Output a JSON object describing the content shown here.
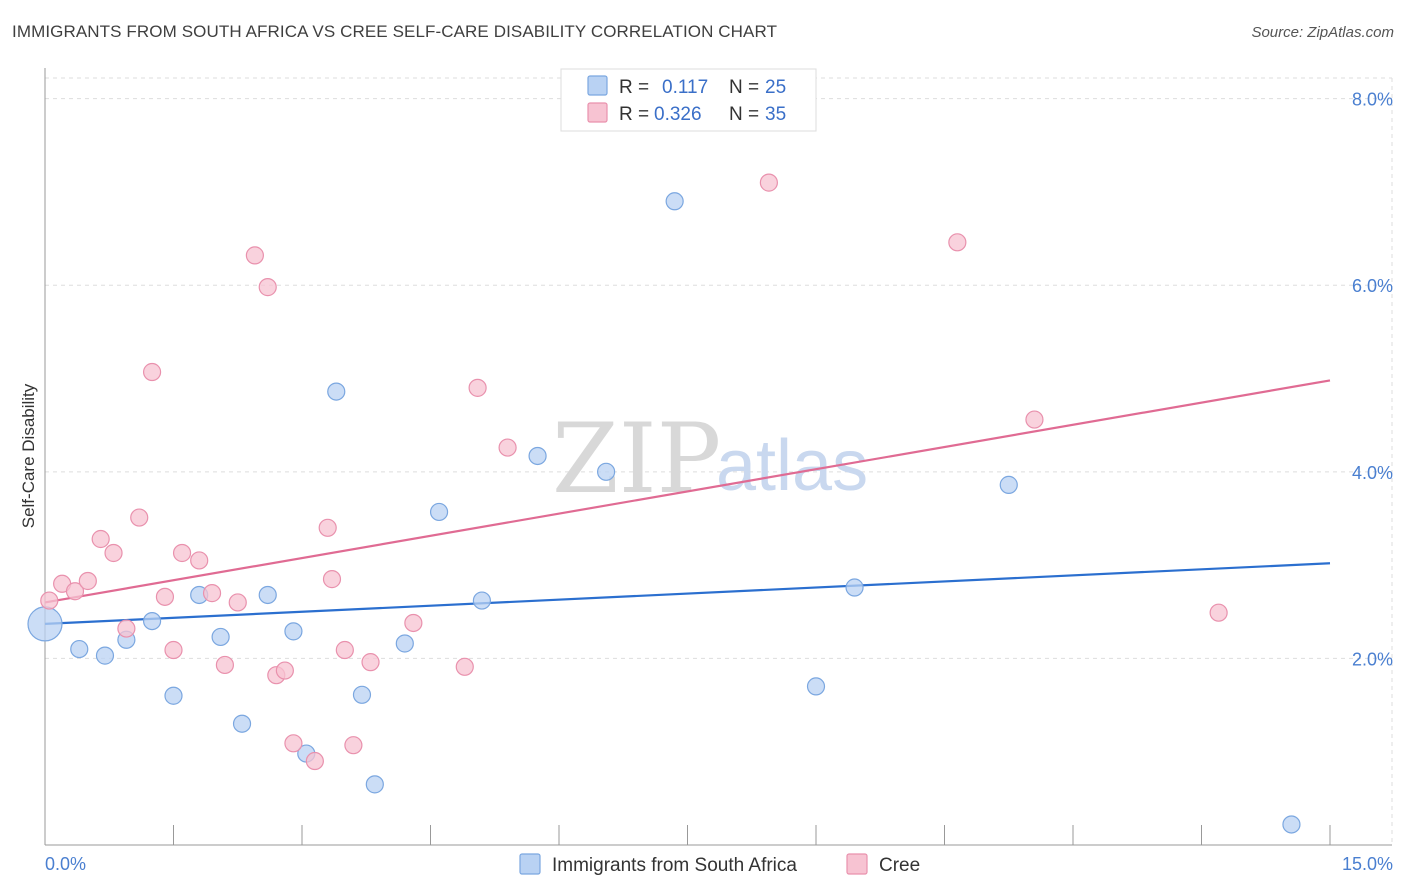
{
  "title": "IMMIGRANTS FROM SOUTH AFRICA VS CREE SELF-CARE DISABILITY CORRELATION CHART",
  "source": "Source: ZipAtlas.com",
  "watermark": {
    "zip": "ZIP",
    "atlas": "atlas"
  },
  "colors": {
    "blue_fill": "#b9d2f3",
    "blue_stroke": "#7ba7e0",
    "blue_line": "#2b6fcf",
    "pink_fill": "#f7c3d2",
    "pink_stroke": "#e991ad",
    "pink_line": "#e06b93",
    "grid": "#dddddd",
    "tick_text": "#4a7fd0"
  },
  "legend": {
    "blue": {
      "r_label": "R =",
      "r_value": "0.117",
      "n_label": "N =",
      "n_value": "25"
    },
    "pink": {
      "r_label": "R =",
      "r_value": "0.326",
      "n_label": "N =",
      "n_value": "35"
    }
  },
  "chart_data": {
    "type": "scatter",
    "xlabel": "",
    "ylabel": "Self-Care Disability",
    "xlim": [
      0,
      15
    ],
    "ylim": [
      0,
      8.2
    ],
    "y_ticks": [
      2,
      4,
      6,
      8
    ],
    "y_tick_labels": [
      "2.0%",
      "4.0%",
      "6.0%",
      "8.0%"
    ],
    "x_tick_labels": [
      "0.0%",
      "15.0%"
    ],
    "x_minor_ticks": [
      0,
      1.5,
      3,
      4.5,
      6,
      7.5,
      9,
      10.5,
      12,
      13.5,
      15
    ],
    "grid": true,
    "legend_position": "top-center",
    "series": [
      {
        "name": "Immigrants from South Africa",
        "color": "blue",
        "trend": {
          "x": [
            0,
            15
          ],
          "y": [
            2.37,
            3.02
          ]
        },
        "points": [
          {
            "x": 0.0,
            "y": 2.37,
            "big": true
          },
          {
            "x": 0.4,
            "y": 2.1
          },
          {
            "x": 0.7,
            "y": 2.03
          },
          {
            "x": 0.95,
            "y": 2.2
          },
          {
            "x": 1.25,
            "y": 2.4
          },
          {
            "x": 1.5,
            "y": 1.6
          },
          {
            "x": 1.8,
            "y": 2.68
          },
          {
            "x": 2.05,
            "y": 2.23
          },
          {
            "x": 2.3,
            "y": 1.3
          },
          {
            "x": 2.6,
            "y": 2.68
          },
          {
            "x": 2.9,
            "y": 2.29
          },
          {
            "x": 3.05,
            "y": 0.98
          },
          {
            "x": 3.4,
            "y": 4.86
          },
          {
            "x": 3.7,
            "y": 1.61
          },
          {
            "x": 3.85,
            "y": 0.65
          },
          {
            "x": 4.2,
            "y": 2.16
          },
          {
            "x": 4.6,
            "y": 3.57
          },
          {
            "x": 5.1,
            "y": 2.62
          },
          {
            "x": 5.75,
            "y": 4.17
          },
          {
            "x": 6.55,
            "y": 4.0
          },
          {
            "x": 7.35,
            "y": 6.9
          },
          {
            "x": 9.0,
            "y": 1.7
          },
          {
            "x": 9.45,
            "y": 2.76
          },
          {
            "x": 11.25,
            "y": 3.86
          },
          {
            "x": 14.55,
            "y": 0.22
          }
        ]
      },
      {
        "name": "Cree",
        "color": "pink",
        "trend": {
          "x": [
            0,
            15
          ],
          "y": [
            2.6,
            4.98
          ]
        },
        "points": [
          {
            "x": 0.05,
            "y": 2.62
          },
          {
            "x": 0.2,
            "y": 2.8
          },
          {
            "x": 0.35,
            "y": 2.72
          },
          {
            "x": 0.5,
            "y": 2.83
          },
          {
            "x": 0.65,
            "y": 3.28
          },
          {
            "x": 0.8,
            "y": 3.13
          },
          {
            "x": 0.95,
            "y": 2.32
          },
          {
            "x": 1.1,
            "y": 3.51
          },
          {
            "x": 1.25,
            "y": 5.07
          },
          {
            "x": 1.4,
            "y": 2.66
          },
          {
            "x": 1.5,
            "y": 2.09
          },
          {
            "x": 1.6,
            "y": 3.13
          },
          {
            "x": 1.8,
            "y": 3.05
          },
          {
            "x": 1.95,
            "y": 2.7
          },
          {
            "x": 2.1,
            "y": 1.93
          },
          {
            "x": 2.25,
            "y": 2.6
          },
          {
            "x": 2.45,
            "y": 6.32
          },
          {
            "x": 2.6,
            "y": 5.98
          },
          {
            "x": 2.7,
            "y": 1.82
          },
          {
            "x": 2.8,
            "y": 1.87
          },
          {
            "x": 2.9,
            "y": 1.09
          },
          {
            "x": 3.15,
            "y": 0.9
          },
          {
            "x": 3.3,
            "y": 3.4
          },
          {
            "x": 3.35,
            "y": 2.85
          },
          {
            "x": 3.5,
            "y": 2.09
          },
          {
            "x": 3.6,
            "y": 1.07
          },
          {
            "x": 3.8,
            "y": 1.96
          },
          {
            "x": 4.3,
            "y": 2.38
          },
          {
            "x": 4.9,
            "y": 1.91
          },
          {
            "x": 5.05,
            "y": 4.9
          },
          {
            "x": 5.4,
            "y": 4.26
          },
          {
            "x": 8.45,
            "y": 7.1
          },
          {
            "x": 10.65,
            "y": 6.46
          },
          {
            "x": 11.55,
            "y": 4.56
          },
          {
            "x": 13.7,
            "y": 2.49
          }
        ]
      }
    ]
  }
}
